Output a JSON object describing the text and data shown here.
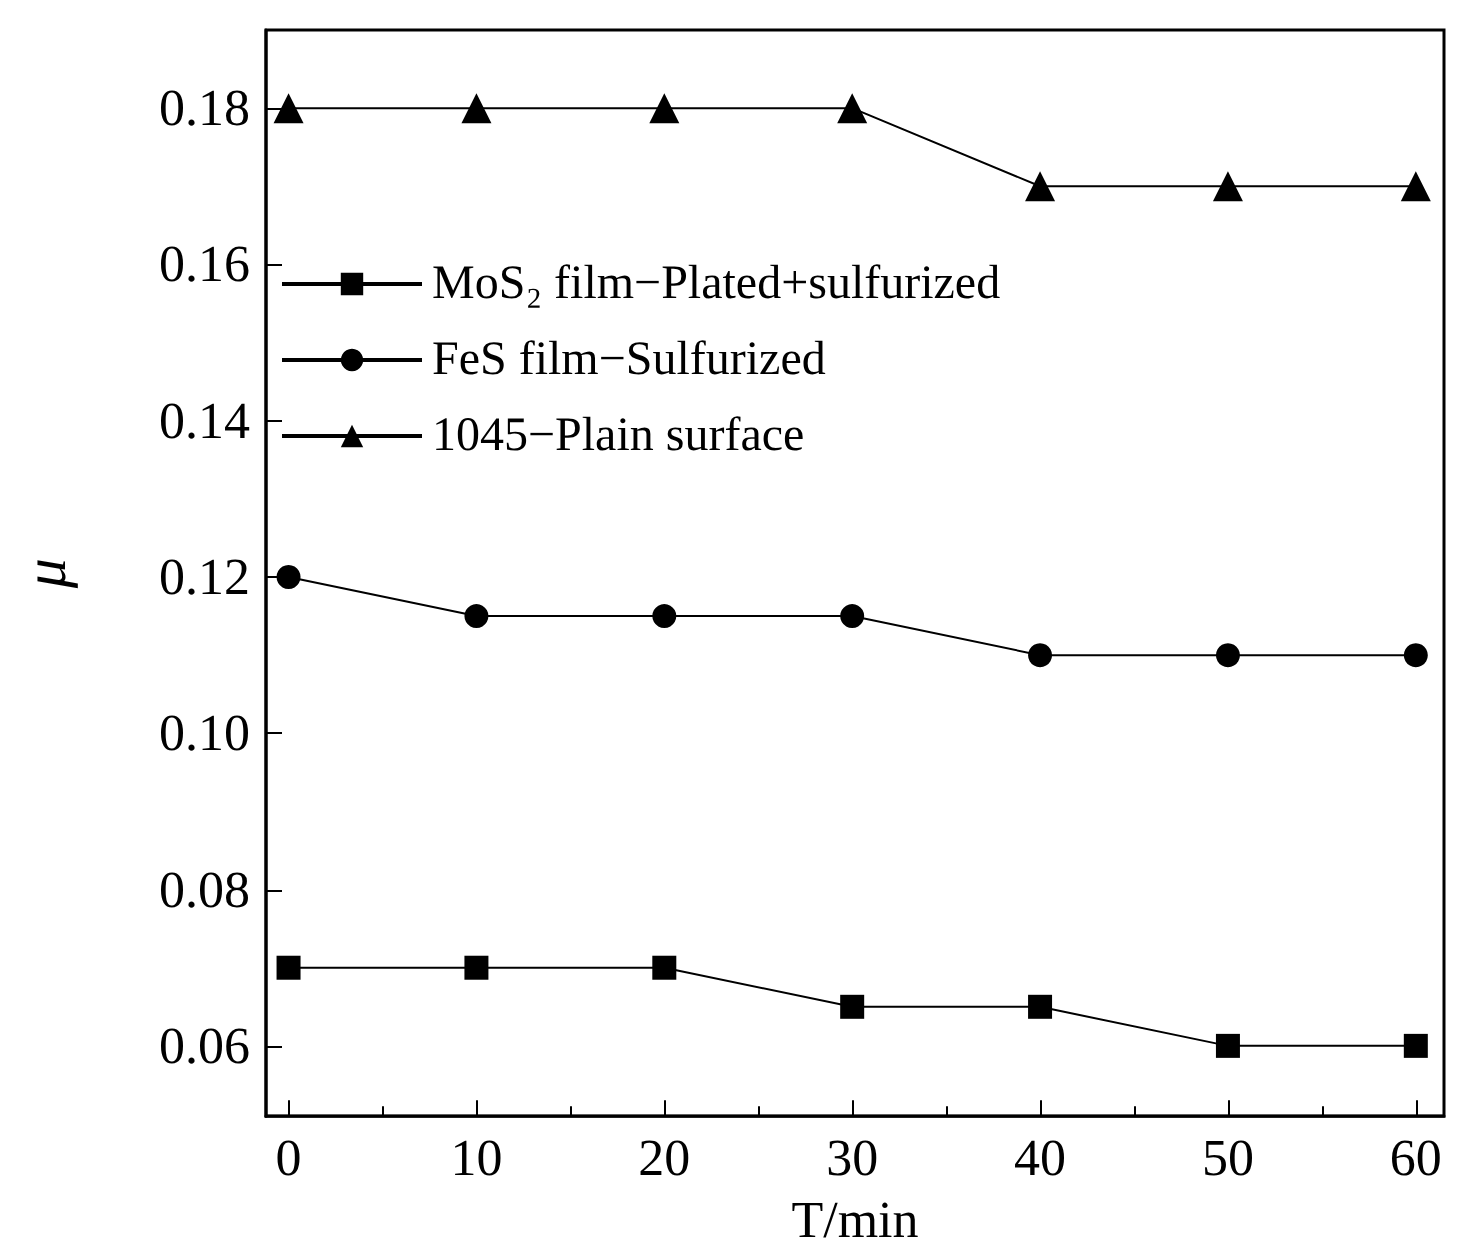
{
  "chart_data": {
    "type": "line",
    "xlabel": "T/min",
    "ylabel": "μ",
    "x": [
      0,
      10,
      20,
      30,
      40,
      50,
      60
    ],
    "xlim": [
      -1.2,
      61.5
    ],
    "xticks": [
      0,
      10,
      20,
      30,
      40,
      50,
      60
    ],
    "ylim": [
      0.051,
      0.19
    ],
    "yticks": [
      {
        "value": 0.06,
        "label": "0.06"
      },
      {
        "value": 0.08,
        "label": "0.08"
      },
      {
        "value": 0.1,
        "label": "0.10"
      },
      {
        "value": 0.12,
        "label": "0.12"
      },
      {
        "value": 0.14,
        "label": "0.14"
      },
      {
        "value": 0.16,
        "label": "0.16"
      },
      {
        "value": 0.18,
        "label": "0.18"
      }
    ],
    "grid": false,
    "legend": "top left",
    "line_style": "solid",
    "series": [
      {
        "name": "MoS₂ film−Plated+sulfurized",
        "color": "#000000",
        "marker": "square",
        "values": [
          0.07,
          0.07,
          0.07,
          0.065,
          0.065,
          0.06,
          0.06
        ]
      },
      {
        "name": "FeS film−Sulfurized",
        "color": "#000000",
        "marker": "circle",
        "values": [
          0.12,
          0.115,
          0.115,
          0.115,
          0.11,
          0.11,
          0.11
        ]
      },
      {
        "name": "1045−Plain surface",
        "color": "#000000",
        "marker": "triangle",
        "values": [
          0.18,
          0.18,
          0.18,
          0.18,
          0.17,
          0.17,
          0.17
        ]
      }
    ]
  }
}
